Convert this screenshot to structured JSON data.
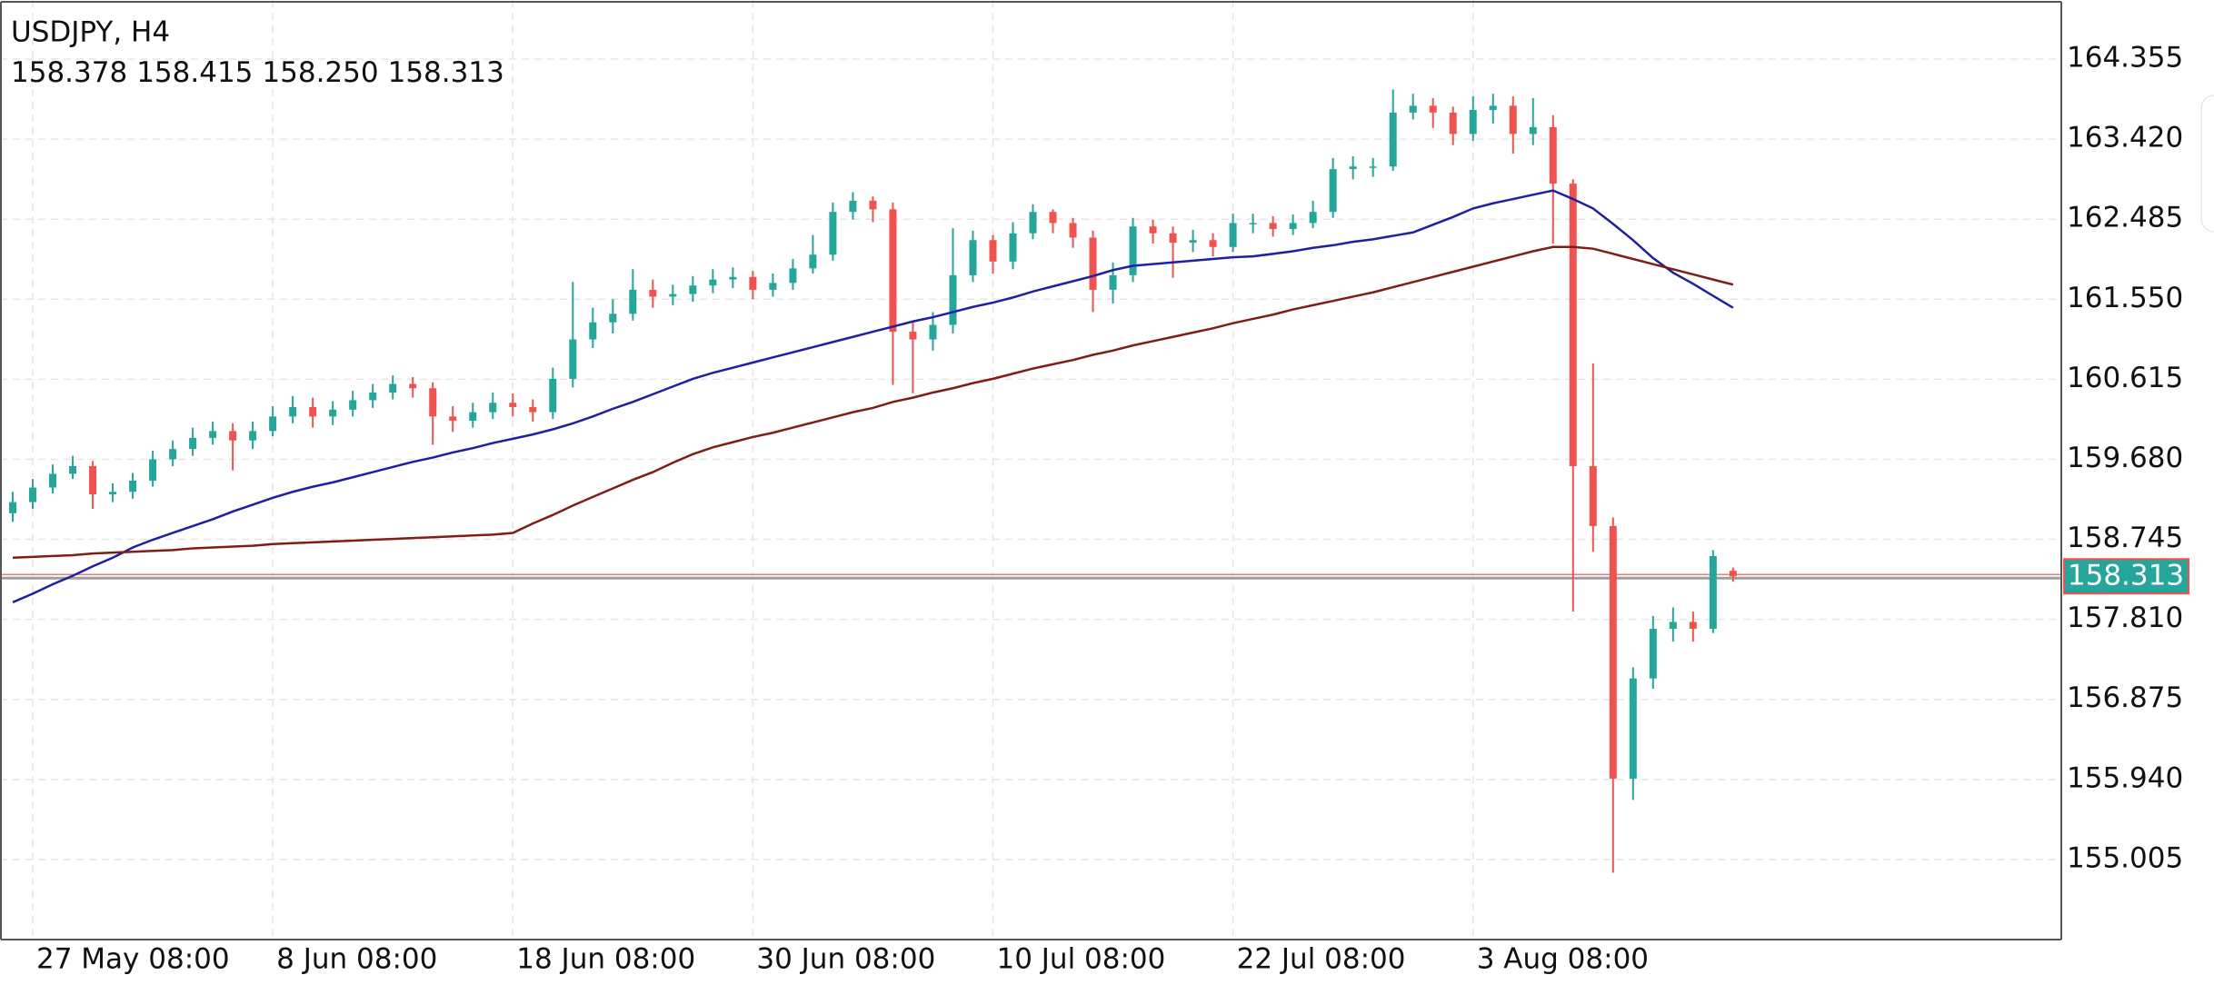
{
  "chart_data": {
    "type": "candlestick",
    "title": "USDJPY, H4",
    "ohlc_text": [
      "158.378",
      "158.415",
      "158.250",
      "158.313"
    ],
    "categories": [
      null,
      "27 May 08:00",
      null,
      null,
      null,
      null,
      null,
      null,
      null,
      null,
      null,
      null,
      null,
      "8 Jun 08:00",
      null,
      null,
      null,
      null,
      null,
      null,
      null,
      null,
      null,
      null,
      null,
      "18 Jun 08:00",
      null,
      null,
      null,
      null,
      null,
      null,
      null,
      null,
      null,
      null,
      null,
      "30 Jun 08:00",
      null,
      null,
      null,
      null,
      null,
      null,
      null,
      null,
      null,
      null,
      null,
      "10 Jul 08:00",
      null,
      null,
      null,
      null,
      null,
      null,
      null,
      null,
      null,
      null,
      null,
      "22 Jul 08:00",
      null,
      null,
      null,
      null,
      null,
      null,
      null,
      null,
      null,
      null,
      null,
      "3 Aug 08:00",
      null,
      null,
      null,
      null,
      null,
      null,
      null,
      null,
      null,
      null,
      null,
      null,
      null
    ],
    "open": [
      159.05,
      159.18,
      159.35,
      159.51,
      159.6,
      159.27,
      159.3,
      159.43,
      159.68,
      159.8,
      159.93,
      160.01,
      159.9,
      160.01,
      160.18,
      160.29,
      160.18,
      160.26,
      160.37,
      160.46,
      160.56,
      160.51,
      160.18,
      160.13,
      160.23,
      160.34,
      160.29,
      160.23,
      160.62,
      161.08,
      161.28,
      161.38,
      161.66,
      161.58,
      161.61,
      161.71,
      161.78,
      161.81,
      161.66,
      161.74,
      161.91,
      162.07,
      162.57,
      162.7,
      162.6,
      161.17,
      161.08,
      161.25,
      161.83,
      162.24,
      161.99,
      162.32,
      162.57,
      162.44,
      162.27,
      161.66,
      161.83,
      162.4,
      162.32,
      162.21,
      162.24,
      162.16,
      162.44,
      162.44,
      162.37,
      162.44,
      162.57,
      163.07,
      163.1,
      163.1,
      163.73,
      163.81,
      163.73,
      163.48,
      163.76,
      163.81,
      163.48,
      163.56,
      162.9,
      159.6,
      158.9,
      155.95,
      157.12,
      157.7,
      157.78,
      157.7,
      158.378
    ],
    "high": [
      159.3,
      159.45,
      159.62,
      159.72,
      159.66,
      159.4,
      159.52,
      159.78,
      159.9,
      160.05,
      160.12,
      160.1,
      160.12,
      160.3,
      160.42,
      160.4,
      160.36,
      160.48,
      160.56,
      160.66,
      160.64,
      160.58,
      160.3,
      160.34,
      160.46,
      160.45,
      160.38,
      160.75,
      161.75,
      161.45,
      161.55,
      161.9,
      161.78,
      161.72,
      161.82,
      161.9,
      161.92,
      161.88,
      161.85,
      162.02,
      162.3,
      162.68,
      162.8,
      162.75,
      162.68,
      161.3,
      161.4,
      162.38,
      162.35,
      162.3,
      162.45,
      162.66,
      162.6,
      162.5,
      162.35,
      161.98,
      162.5,
      162.48,
      162.4,
      162.36,
      162.32,
      162.55,
      162.55,
      162.52,
      162.54,
      162.7,
      163.2,
      163.22,
      163.2,
      164.0,
      163.95,
      163.9,
      163.8,
      163.92,
      163.95,
      163.92,
      163.9,
      163.7,
      162.95,
      160.8,
      159.0,
      157.25,
      157.85,
      157.95,
      157.9,
      158.62,
      158.415
    ],
    "low": [
      158.95,
      159.1,
      159.28,
      159.45,
      159.1,
      159.18,
      159.22,
      159.36,
      159.6,
      159.72,
      159.85,
      159.55,
      159.8,
      159.95,
      160.1,
      160.05,
      160.08,
      160.18,
      160.28,
      160.38,
      160.4,
      159.85,
      160.0,
      160.05,
      160.15,
      160.18,
      160.12,
      160.15,
      160.52,
      160.98,
      161.15,
      161.3,
      161.45,
      161.48,
      161.52,
      161.62,
      161.68,
      161.55,
      161.58,
      161.66,
      161.85,
      162.0,
      162.48,
      162.45,
      160.55,
      160.45,
      160.95,
      161.15,
      161.75,
      161.85,
      161.9,
      162.25,
      162.32,
      162.15,
      161.4,
      161.5,
      161.75,
      162.2,
      161.8,
      162.1,
      162.05,
      162.1,
      162.32,
      162.28,
      162.3,
      162.38,
      162.5,
      162.95,
      162.98,
      163.05,
      163.65,
      163.55,
      163.35,
      163.4,
      163.6,
      163.25,
      163.35,
      162.2,
      157.9,
      158.6,
      154.85,
      155.7,
      157.0,
      157.55,
      157.55,
      157.65,
      158.25
    ],
    "close": [
      159.18,
      159.35,
      159.51,
      159.6,
      159.27,
      159.3,
      159.43,
      159.68,
      159.8,
      159.93,
      160.01,
      159.9,
      160.01,
      160.18,
      160.29,
      160.18,
      160.26,
      160.37,
      160.46,
      160.56,
      160.51,
      160.18,
      160.13,
      160.23,
      160.34,
      160.29,
      160.23,
      160.62,
      161.08,
      161.28,
      161.38,
      161.66,
      161.58,
      161.61,
      161.71,
      161.78,
      161.81,
      161.66,
      161.74,
      161.91,
      162.07,
      162.57,
      162.7,
      162.6,
      161.17,
      161.08,
      161.25,
      161.83,
      162.24,
      161.99,
      162.32,
      162.57,
      162.44,
      162.27,
      161.66,
      161.83,
      162.4,
      162.32,
      162.21,
      162.24,
      162.16,
      162.44,
      162.44,
      162.37,
      162.44,
      162.57,
      163.07,
      163.1,
      163.1,
      163.73,
      163.81,
      163.73,
      163.48,
      163.76,
      163.81,
      163.48,
      163.56,
      162.9,
      159.6,
      158.9,
      155.95,
      157.12,
      157.7,
      157.78,
      157.7,
      158.55,
      158.313
    ],
    "up_color": "#26a69a",
    "down_color": "#ef5350",
    "series": [
      {
        "color": "#1f1fa3",
        "values": [
          158.01,
          158.11,
          158.22,
          158.32,
          158.43,
          158.53,
          158.65,
          158.74,
          158.82,
          158.9,
          158.98,
          159.07,
          159.15,
          159.23,
          159.3,
          159.36,
          159.41,
          159.47,
          159.53,
          159.59,
          159.65,
          159.7,
          159.76,
          159.81,
          159.87,
          159.92,
          159.97,
          160.03,
          160.1,
          160.18,
          160.27,
          160.35,
          160.44,
          160.53,
          160.62,
          160.69,
          160.75,
          160.81,
          160.87,
          160.93,
          160.99,
          161.05,
          161.11,
          161.17,
          161.23,
          161.29,
          161.34,
          161.4,
          161.46,
          161.51,
          161.57,
          161.64,
          161.7,
          161.76,
          161.82,
          161.89,
          161.94,
          161.96,
          161.98,
          162.0,
          162.02,
          162.04,
          162.05,
          162.08,
          162.11,
          162.15,
          162.18,
          162.22,
          162.25,
          162.29,
          162.33,
          162.42,
          162.51,
          162.61,
          162.67,
          162.72,
          162.77,
          162.82,
          162.72,
          162.61,
          162.43,
          162.24,
          162.03,
          161.86,
          161.73,
          161.59,
          161.45
        ]
      },
      {
        "color": "#7f1d16",
        "values": [
          158.53,
          158.54,
          158.55,
          158.56,
          158.58,
          158.59,
          158.6,
          158.61,
          158.62,
          158.64,
          158.65,
          158.66,
          158.67,
          158.69,
          158.7,
          158.71,
          158.72,
          158.73,
          158.74,
          158.75,
          158.76,
          158.77,
          158.78,
          158.79,
          158.8,
          158.82,
          158.93,
          159.03,
          159.14,
          159.24,
          159.34,
          159.44,
          159.53,
          159.64,
          159.74,
          159.82,
          159.88,
          159.94,
          159.99,
          160.05,
          160.11,
          160.17,
          160.23,
          160.28,
          160.35,
          160.4,
          160.46,
          160.51,
          160.57,
          160.62,
          160.68,
          160.74,
          160.79,
          160.84,
          160.9,
          160.95,
          161.01,
          161.06,
          161.11,
          161.16,
          161.21,
          161.27,
          161.32,
          161.37,
          161.43,
          161.48,
          161.53,
          161.58,
          161.63,
          161.69,
          161.75,
          161.81,
          161.87,
          161.93,
          161.99,
          162.05,
          162.11,
          162.16,
          162.16,
          162.14,
          162.08,
          162.02,
          161.96,
          161.9,
          161.84,
          161.78,
          161.72
        ]
      }
    ],
    "last_price": 158.313,
    "ylim": [
      154.07,
      165.045
    ],
    "yticks": [
      155.005,
      {
        "value": 155.94,
        "label": "155.940"
      },
      156.875,
      {
        "value": 157.81,
        "label": "157.810"
      },
      158.745,
      {
        "value": 159.68,
        "label": "159.680"
      },
      160.615,
      {
        "value": 161.55,
        "label": "161.550"
      },
      162.485,
      {
        "value": 163.42,
        "label": "163.420"
      },
      164.355
    ],
    "grid": true
  }
}
